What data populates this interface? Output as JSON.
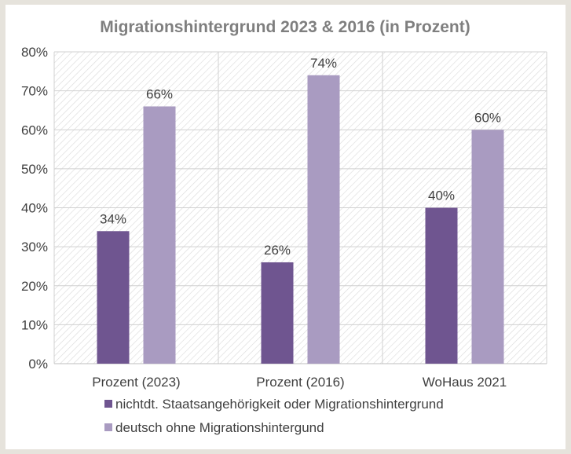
{
  "chart_data": {
    "type": "bar",
    "title": "Migrationshintergrund 2023 & 2016 (in Prozent)",
    "xlabel": "",
    "ylabel": "",
    "categories": [
      "Prozent (2023)",
      "Prozent (2016)",
      "WoHaus 2021"
    ],
    "series": [
      {
        "name": "nichtdt. Staatsangehörigkeit oder Migrationshintergrund",
        "values": [
          34,
          26,
          40
        ],
        "labels": [
          "34%",
          "26%",
          "40%"
        ],
        "color": "#6f5590"
      },
      {
        "name": "deutsch ohne Migrationshintergund",
        "values": [
          66,
          74,
          60
        ],
        "labels": [
          "66%",
          "74%",
          "60%"
        ],
        "color": "#a99bc1"
      }
    ],
    "ylim": [
      0,
      80
    ],
    "yticks": [
      0,
      10,
      20,
      30,
      40,
      50,
      60,
      70,
      80
    ],
    "ytick_labels": [
      "0%",
      "10%",
      "20%",
      "30%",
      "40%",
      "50%",
      "60%",
      "70%",
      "80%"
    ],
    "grid": true,
    "legend_position": "bottom"
  }
}
